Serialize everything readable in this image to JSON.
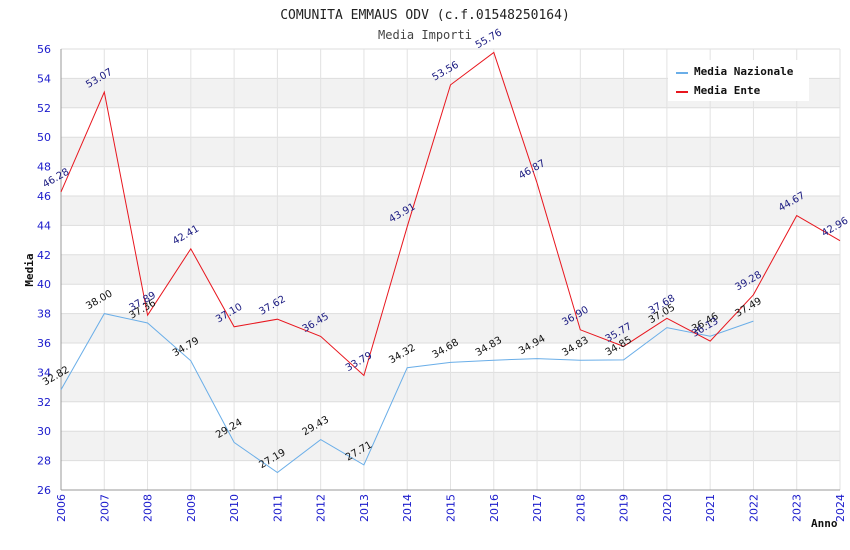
{
  "chart_data": {
    "type": "line",
    "title": "COMUNITA EMMAUS ODV (c.f.01548250164)",
    "subtitle": "Media Importi",
    "xlabel": "Anno",
    "ylabel": "Media",
    "ylim": [
      26,
      56
    ],
    "yticks": [
      26,
      28,
      30,
      32,
      34,
      36,
      38,
      40,
      42,
      44,
      46,
      48,
      50,
      52,
      54,
      56
    ],
    "x": [
      "2006",
      "2007",
      "2008",
      "2009",
      "2010",
      "2011",
      "2012",
      "2013",
      "2014",
      "2015",
      "2016",
      "2017",
      "2018",
      "2019",
      "2020",
      "2021",
      "2022",
      "2023",
      "2024"
    ],
    "grid": true,
    "legend_position": "top-right",
    "series": [
      {
        "name": "Media Nazionale",
        "color": "#6aaee8",
        "values": [
          32.82,
          38.0,
          37.36,
          34.79,
          29.24,
          27.19,
          29.43,
          27.71,
          34.32,
          34.68,
          34.83,
          34.94,
          34.83,
          34.85,
          37.05,
          36.46,
          37.49,
          null,
          null
        ],
        "labels": [
          "32.82",
          "38.00",
          "37.36",
          "34.79",
          "29.24",
          "27.19",
          "29.43",
          "27.71",
          "34.32",
          "34.68",
          "34.83",
          "34.94",
          "34.83",
          "34.85",
          "37.05",
          "36.46",
          "37.49",
          null,
          null
        ]
      },
      {
        "name": "Media Ente",
        "color": "#e8161e",
        "values": [
          46.28,
          53.07,
          37.89,
          42.41,
          37.1,
          37.62,
          36.45,
          33.79,
          43.91,
          53.56,
          55.76,
          46.87,
          36.9,
          35.77,
          37.68,
          36.13,
          39.28,
          44.67,
          42.96
        ],
        "labels": [
          "46.28",
          "53.07",
          "37.89",
          "42.41",
          "37.10",
          "37.62",
          "36.45",
          "33.79",
          "43.91",
          "53.56",
          "55.76",
          "46.87",
          "36.90",
          "35.77",
          "37.68",
          "36.13",
          "39.28",
          "44.67",
          "42.96"
        ]
      }
    ]
  }
}
